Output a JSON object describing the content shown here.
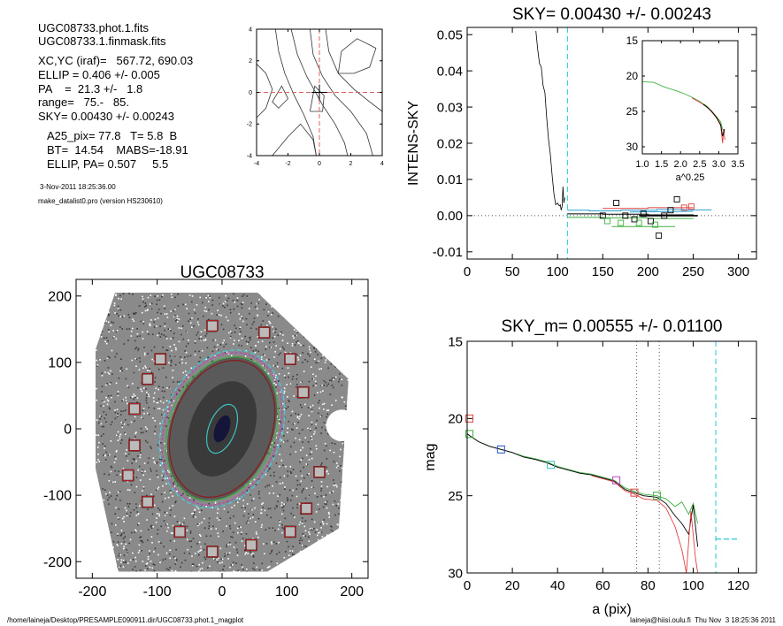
{
  "header": {
    "lines": [
      "UGC08733.phot.1.fits",
      "UGC08733.1.finmask.fits",
      "XC,YC (iraf)=   567.72, 690.03",
      "ELLIP = 0.406 +/- 0.005",
      "PA    =  21.3 +/-   1.8",
      "range=   75.-   85.",
      "SKY= 0.00430 +/- 0.00243",
      "A25_pix= 77.8   T= 5.8  B",
      "BT=  14.54    MABS=-18.91",
      "ELLIP, PA= 0.507     5.5",
      "3-Nov-2011 18:25:36.00",
      "make_datalist0.pro (version HS230610)"
    ]
  },
  "footer": {
    "path": "/home/laineja/Desktop/PRESAMPLE090911.dir/UGC08733.phot.1_magplot",
    "user_date": "laineja@hiisi.oulu.fi  Thu Nov  3 18:25:36 2011"
  },
  "chart_data": [
    {
      "id": "contour",
      "type": "contour",
      "title": "",
      "xlim": [
        -4,
        4
      ],
      "ylim": [
        -4,
        4
      ],
      "xticks": [
        -4,
        -2,
        0,
        2,
        4
      ],
      "yticks": [
        -4,
        -2,
        0,
        2,
        4
      ],
      "crosshair_color": "#e06060",
      "contours": [
        [
          [
            0.4,
            4
          ],
          [
            0.6,
            2.6
          ],
          [
            1.2,
            1.2
          ],
          [
            2.2,
            0.2
          ],
          [
            3.2,
            -0.6
          ],
          [
            4,
            -1.2
          ]
        ],
        [
          [
            -0.6,
            4
          ],
          [
            -0.4,
            2.4
          ],
          [
            0.2,
            1.0
          ],
          [
            1.0,
            -0.2
          ],
          [
            2.0,
            -1.2
          ],
          [
            3.0,
            -2.6
          ],
          [
            3.4,
            -4
          ]
        ],
        [
          [
            -1.8,
            4
          ],
          [
            -1.4,
            2.4
          ],
          [
            -0.8,
            1.0
          ],
          [
            0.2,
            -0.8
          ],
          [
            1.0,
            -2.0
          ],
          [
            1.6,
            -3.2
          ],
          [
            1.8,
            -4
          ]
        ],
        [
          [
            -2.8,
            4
          ],
          [
            -2.6,
            2.6
          ],
          [
            -2.2,
            1.2
          ],
          [
            -1.6,
            -0.2
          ],
          [
            -1.0,
            -1.4
          ],
          [
            -0.4,
            -2.8
          ],
          [
            -0.2,
            -4
          ]
        ],
        [
          [
            -4,
            1.8
          ],
          [
            -3.4,
            1.2
          ],
          [
            -3.0,
            0.2
          ],
          [
            -3.4,
            -1.0
          ],
          [
            -4,
            -1.6
          ]
        ],
        [
          [
            -3.0,
            -4
          ],
          [
            -2.0,
            -2.8
          ],
          [
            -1.2,
            -2.0
          ],
          [
            -0.4,
            -3.0
          ],
          [
            -0.2,
            -4
          ]
        ],
        [
          [
            1.2,
            1.2
          ],
          [
            1.4,
            2.6
          ],
          [
            2.4,
            3.4
          ],
          [
            3.6,
            2.8
          ],
          [
            3.2,
            1.6
          ],
          [
            2.2,
            1.2
          ],
          [
            1.2,
            1.2
          ]
        ],
        [
          [
            -2.6,
            -1.0
          ],
          [
            -3.0,
            -0.6
          ],
          [
            -2.4,
            0.4
          ],
          [
            -2.0,
            -0.4
          ],
          [
            -2.6,
            -1.0
          ]
        ],
        [
          [
            -0.6,
            -1.2
          ],
          [
            -0.3,
            0.4
          ],
          [
            0.3,
            -0.2
          ],
          [
            0.2,
            -1.2
          ],
          [
            -0.6,
            -1.2
          ]
        ]
      ]
    },
    {
      "id": "sky",
      "type": "line",
      "title": "SKY= 0.00430 +/- 0.00243",
      "xlabel": "",
      "ylabel": "INTENS-SKY",
      "xlim": [
        0,
        320
      ],
      "ylim": [
        -0.012,
        0.052
      ],
      "xticks": [
        0,
        50,
        100,
        150,
        200,
        250,
        300
      ],
      "yticks": [
        -0.01,
        0.0,
        0.01,
        0.02,
        0.03,
        0.04,
        0.05
      ],
      "ytick_labels": [
        "-0.01",
        "0.00",
        "0.01",
        "0.02",
        "0.03",
        "0.04",
        "0.05"
      ],
      "vline_x": 111,
      "profile": [
        [
          76,
          0.051
        ],
        [
          78,
          0.046
        ],
        [
          80,
          0.042
        ],
        [
          82,
          0.041
        ],
        [
          84,
          0.036
        ],
        [
          86,
          0.034
        ],
        [
          88,
          0.027
        ],
        [
          90,
          0.021
        ],
        [
          92,
          0.017
        ],
        [
          94,
          0.011
        ],
        [
          96,
          0.006
        ],
        [
          98,
          0.003
        ],
        [
          100,
          0.0035
        ],
        [
          101,
          0.003
        ],
        [
          102,
          0.0027
        ],
        [
          103,
          0.003
        ],
        [
          104,
          0.0015
        ],
        [
          105,
          0.0025
        ],
        [
          106,
          0.008
        ],
        [
          107,
          0.0035
        ],
        [
          108,
          0.005
        ]
      ],
      "black_points": [
        [
          150,
          0.0
        ],
        [
          165,
          0.0035
        ],
        [
          175,
          0.0
        ],
        [
          185,
          -0.001
        ],
        [
          195,
          0.0005
        ],
        [
          203,
          -0.0015
        ],
        [
          212,
          -0.0055
        ],
        [
          218,
          0.0
        ],
        [
          225,
          0.0015
        ],
        [
          232,
          0.0045
        ]
      ],
      "red_points": [
        [
          240,
          0.0022
        ],
        [
          248,
          0.0025
        ]
      ],
      "green_points": [
        [
          155,
          -0.0015
        ],
        [
          170,
          -0.002
        ],
        [
          190,
          -0.002
        ],
        [
          208,
          -0.0025
        ]
      ],
      "steps": [
        {
          "color": "#2aa0d0",
          "pts": [
            [
              111,
              0.0015
            ],
            [
              135,
              0.0013
            ],
            [
              170,
              0.0015
            ],
            [
              210,
              0.0017
            ],
            [
              240,
              0.0016
            ],
            [
              270,
              0.0015
            ]
          ]
        },
        {
          "color": "#000000",
          "pts": [
            [
              111,
              0.0005
            ],
            [
              150,
              0.0004
            ],
            [
              200,
              0.0002
            ],
            [
              250,
              0.0001
            ]
          ]
        },
        {
          "color": "#40b040",
          "pts": [
            [
              111,
              -0.0005
            ],
            [
              150,
              -0.0006
            ],
            [
              200,
              -0.0008
            ],
            [
              250,
              -0.0009
            ]
          ]
        },
        {
          "color": "#e04040",
          "pts": [
            [
              150,
              0.002
            ],
            [
              200,
              0.0022
            ],
            [
              250,
              0.0022
            ]
          ]
        }
      ],
      "segments": [
        {
          "color": "#000000",
          "pts": [
            [
              190,
              0.0
            ],
            [
              255,
              0.0
            ]
          ],
          "width": 1.6
        },
        {
          "color": "#2aa0d0",
          "pts": [
            [
              180,
              0.001
            ],
            [
              250,
              0.0012
            ]
          ],
          "width": 1
        },
        {
          "color": "#40b040",
          "pts": [
            [
              160,
              -0.003
            ],
            [
              230,
              -0.003
            ]
          ],
          "width": 1
        }
      ]
    },
    {
      "id": "inset",
      "type": "line",
      "title": "",
      "xlabel": "a^0.25",
      "ylabel": "",
      "xlim": [
        1.0,
        3.5
      ],
      "ylim": [
        15,
        31
      ],
      "xticks": [
        1.0,
        1.5,
        2.0,
        2.5,
        3.0,
        3.5
      ],
      "xtick_labels": [
        "1.0",
        "1.5",
        "2.0",
        "2.5",
        "3.0",
        "3.5"
      ],
      "yticks": [
        15,
        20,
        25,
        30
      ],
      "series": [
        {
          "color": "#40b040",
          "pts": [
            [
              1.0,
              20.8
            ],
            [
              1.3,
              20.9
            ],
            [
              1.6,
              21.6
            ],
            [
              1.9,
              22.1
            ],
            [
              2.1,
              22.5
            ],
            [
              2.3,
              23.0
            ],
            [
              2.5,
              23.6
            ],
            [
              2.7,
              24.3
            ],
            [
              2.85,
              25.2
            ],
            [
              2.95,
              25.8
            ],
            [
              3.05,
              26.5
            ],
            [
              3.1,
              27.5
            ],
            [
              3.15,
              28.0
            ]
          ]
        },
        {
          "color": "#e04040",
          "pts": [
            [
              2.3,
              23.1
            ],
            [
              2.5,
              23.7
            ],
            [
              2.7,
              24.4
            ],
            [
              2.85,
              25.3
            ],
            [
              2.95,
              26.0
            ],
            [
              3.05,
              27.0
            ],
            [
              3.1,
              29.5
            ],
            [
              3.13,
              27.5
            ],
            [
              3.16,
              29.0
            ]
          ]
        },
        {
          "color": "#000000",
          "pts": [
            [
              2.6,
              24.0
            ],
            [
              2.8,
              24.9
            ],
            [
              2.95,
              25.9
            ],
            [
              3.05,
              26.9
            ],
            [
              3.1,
              28.5
            ],
            [
              3.14,
              27.8
            ],
            [
              3.15,
              27.5
            ]
          ]
        }
      ]
    },
    {
      "id": "image",
      "type": "image",
      "title": "UGC08733",
      "xlim": [
        -225,
        225
      ],
      "ylim": [
        -225,
        225
      ],
      "xticks": [
        -200,
        -100,
        0,
        100,
        200
      ],
      "yticks": [
        -200,
        -100,
        0,
        100,
        200
      ],
      "squares": [
        [
          -15,
          155
        ],
        [
          65,
          145
        ],
        [
          -95,
          105
        ],
        [
          105,
          105
        ],
        [
          -115,
          75
        ],
        [
          125,
          55
        ],
        [
          -135,
          30
        ],
        [
          -135,
          -25
        ],
        [
          -145,
          -70
        ],
        [
          150,
          -65
        ],
        [
          -115,
          -110
        ],
        [
          130,
          -120
        ],
        [
          -65,
          -155
        ],
        [
          105,
          -155
        ],
        [
          -15,
          -185
        ],
        [
          45,
          -175
        ]
      ]
    },
    {
      "id": "mag",
      "type": "line",
      "title": "SKY_m=  0.00555 +/- 0.01100",
      "xlabel": "a (pix)",
      "ylabel": "mag",
      "xlim": [
        0,
        128
      ],
      "ylim": [
        15,
        30
      ],
      "xticks": [
        0,
        20,
        40,
        60,
        80,
        100,
        120
      ],
      "yticks": [
        15,
        20,
        25,
        30
      ],
      "dotted_vlines": [
        75,
        85
      ],
      "dashed_vline": 110,
      "cyan_segment": [
        [
          110,
          27.8
        ],
        [
          120,
          27.8
        ]
      ],
      "markers": [
        {
          "color": "#e04040",
          "x": 1,
          "y": 20.0
        },
        {
          "color": "#40b040",
          "x": 1,
          "y": 21.0
        },
        {
          "color": "#2050d0",
          "x": 15,
          "y": 22.0
        },
        {
          "color": "#40c0c0",
          "x": 37,
          "y": 23.0
        },
        {
          "color": "#c040c0",
          "x": 66,
          "y": 24.0
        },
        {
          "color": "#e04040",
          "x": 74,
          "y": 24.8
        },
        {
          "color": "#40b040",
          "x": 84,
          "y": 25.0
        }
      ],
      "series": [
        {
          "color": "#40b040",
          "pts": [
            [
              0,
              21.0
            ],
            [
              5,
              21.5
            ],
            [
              10,
              21.8
            ],
            [
              15,
              22.0
            ],
            [
              20,
              22.2
            ],
            [
              25,
              22.45
            ],
            [
              30,
              22.6
            ],
            [
              35,
              22.8
            ],
            [
              40,
              23.1
            ],
            [
              45,
              23.3
            ],
            [
              50,
              23.5
            ],
            [
              55,
              23.6
            ],
            [
              60,
              23.8
            ],
            [
              65,
              24.0
            ],
            [
              70,
              24.5
            ],
            [
              74,
              24.7
            ],
            [
              78,
              24.9
            ],
            [
              84,
              25.0
            ],
            [
              88,
              25.2
            ],
            [
              92,
              25.7
            ],
            [
              95,
              25.4
            ],
            [
              98,
              26.2
            ],
            [
              100,
              25.5
            ],
            [
              102,
              26.8
            ]
          ]
        },
        {
          "color": "#000000",
          "pts": [
            [
              0,
              21.0
            ],
            [
              5,
              21.5
            ],
            [
              10,
              21.8
            ],
            [
              15,
              22.0
            ],
            [
              20,
              22.2
            ],
            [
              25,
              22.5
            ],
            [
              30,
              22.65
            ],
            [
              35,
              22.85
            ],
            [
              40,
              23.15
            ],
            [
              45,
              23.35
            ],
            [
              50,
              23.55
            ],
            [
              55,
              23.65
            ],
            [
              60,
              23.85
            ],
            [
              65,
              24.05
            ],
            [
              70,
              24.6
            ],
            [
              74,
              24.8
            ],
            [
              78,
              25.0
            ],
            [
              84,
              25.1
            ],
            [
              88,
              25.5
            ],
            [
              92,
              26.3
            ],
            [
              95,
              26.8
            ],
            [
              98,
              27.5
            ],
            [
              100,
              25.6
            ],
            [
              102,
              28.3
            ]
          ]
        },
        {
          "color": "#e04040",
          "pts": [
            [
              55,
              23.7
            ],
            [
              60,
              23.9
            ],
            [
              65,
              24.1
            ],
            [
              70,
              24.7
            ],
            [
              74,
              24.9
            ],
            [
              78,
              25.2
            ],
            [
              84,
              25.3
            ],
            [
              88,
              25.8
            ],
            [
              92,
              27.0
            ],
            [
              95,
              28.5
            ],
            [
              97,
              30.0
            ],
            [
              99,
              26.0
            ],
            [
              101,
              29.0
            ],
            [
              102,
              30.0
            ]
          ]
        }
      ]
    }
  ]
}
